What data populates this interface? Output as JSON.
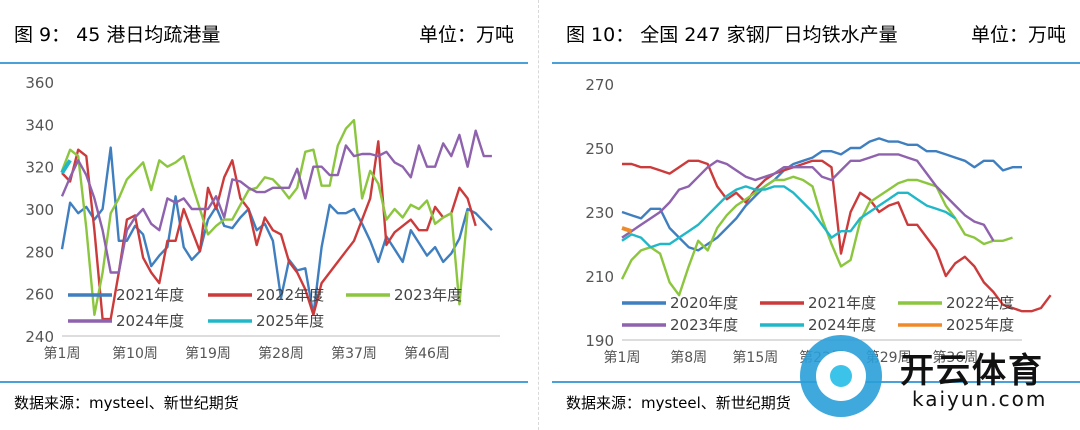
{
  "chart_data": [
    {
      "type": "line",
      "title": "图 9：  45 港日均疏港量",
      "unit": "单位：万吨",
      "source": "数据来源：mysteel、新世纪期货",
      "ylim": [
        240,
        360
      ],
      "yticks": [
        240,
        260,
        280,
        300,
        320,
        340,
        360
      ],
      "xticks": [
        {
          "label": "第1周",
          "week": 1
        },
        {
          "label": "第10周",
          "week": 10
        },
        {
          "label": "第19周",
          "week": 19
        },
        {
          "label": "第28周",
          "week": 28
        },
        {
          "label": "第37周",
          "week": 37
        },
        {
          "label": "第46周",
          "week": 46
        }
      ],
      "legend_rows": [
        [
          0,
          1,
          2
        ],
        [
          3,
          4
        ]
      ],
      "series": [
        {
          "name": "2021年度",
          "color": "#3f7fc0",
          "values": [
            281,
            303,
            298,
            301,
            295,
            300,
            329,
            285,
            285,
            292,
            288,
            273,
            278,
            282,
            306,
            282,
            276,
            280,
            295,
            301,
            292,
            291,
            296,
            300,
            290,
            293,
            285,
            258,
            276,
            271,
            272,
            250,
            282,
            302,
            298,
            298,
            300,
            293,
            285,
            275,
            287,
            281,
            275,
            290,
            284,
            278,
            282,
            275,
            279,
            286,
            300,
            298,
            294,
            290
          ]
        },
        {
          "name": "2022年度",
          "color": "#cc3b3b",
          "values": [
            317,
            313,
            328,
            325,
            290,
            248,
            248,
            270,
            295,
            297,
            277,
            270,
            265,
            285,
            285,
            300,
            290,
            280,
            310,
            300,
            315,
            323,
            305,
            300,
            283,
            296,
            290,
            288,
            275,
            270,
            262,
            250,
            265,
            270,
            275,
            280,
            285,
            295,
            305,
            332,
            283,
            289,
            292,
            295,
            290,
            290,
            301,
            296,
            298,
            310,
            305,
            292
          ]
        },
        {
          "name": "2023年度",
          "color": "#8cc63f",
          "values": [
            318,
            328,
            325,
            291,
            250,
            270,
            298,
            305,
            314,
            318,
            322,
            309,
            323,
            320,
            322,
            325,
            312,
            300,
            288,
            292,
            295,
            295,
            302,
            309,
            310,
            315,
            314,
            310,
            305,
            310,
            327,
            328,
            311,
            311,
            330,
            338,
            342,
            305,
            318,
            312,
            295,
            300,
            296,
            302,
            300,
            304,
            293,
            296,
            298,
            255,
            299
          ]
        },
        {
          "name": "2024年度",
          "color": "#8e62ad",
          "values": [
            306,
            315,
            323,
            316,
            305,
            290,
            270,
            270,
            290,
            296,
            300,
            293,
            290,
            305,
            303,
            305,
            300,
            300,
            300,
            306,
            296,
            314,
            313,
            310,
            308,
            308,
            310,
            310,
            310,
            319,
            305,
            320,
            320,
            316,
            316,
            330,
            325,
            326,
            326,
            325,
            327,
            322,
            320,
            315,
            330,
            320,
            320,
            331,
            325,
            335,
            320,
            337,
            325,
            325
          ]
        },
        {
          "name": "2025年度",
          "color": "#20b8c8",
          "values": [
            317,
            323
          ]
        }
      ]
    },
    {
      "type": "line",
      "title": "图 10：  全国 247 家钢厂日均铁水产量",
      "unit": "单位：万吨",
      "source": "数据来源：mysteel、新世纪期货",
      "ylim": [
        190,
        270
      ],
      "yticks": [
        190,
        210,
        230,
        250,
        270
      ],
      "xticks": [
        {
          "label": "第1周",
          "week": 1
        },
        {
          "label": "第8周",
          "week": 8
        },
        {
          "label": "第15周",
          "week": 15
        },
        {
          "label": "第22周",
          "week": 22
        },
        {
          "label": "第29周",
          "week": 29
        },
        {
          "label": "第36周",
          "week": 36
        }
      ],
      "legend_rows": [
        [
          0,
          1,
          2
        ],
        [
          3,
          4,
          5
        ]
      ],
      "series": [
        {
          "name": "2020年度",
          "color": "#3f7fc0",
          "values": [
            230,
            229,
            228,
            231,
            231,
            225,
            222,
            219,
            218,
            220,
            222,
            225,
            228,
            232,
            235,
            238,
            240,
            243,
            245,
            246,
            247,
            249,
            249,
            248,
            250,
            250,
            252,
            253,
            252,
            252,
            251,
            251,
            249,
            249,
            248,
            247,
            246,
            244,
            246,
            246,
            243,
            244,
            244
          ]
        },
        {
          "name": "2021年度",
          "color": "#cc3b3b",
          "values": [
            245,
            245,
            244,
            244,
            243,
            242,
            244,
            246,
            246,
            245,
            238,
            234,
            236,
            233,
            237,
            240,
            242,
            243,
            244,
            245,
            246,
            246,
            244,
            217,
            230,
            236,
            234,
            230,
            232,
            233,
            226,
            226,
            222,
            218,
            210,
            214,
            216,
            213,
            208,
            205,
            201,
            200,
            199,
            199,
            200,
            204
          ]
        },
        {
          "name": "2022年度",
          "color": "#8cc63f",
          "values": [
            209,
            215,
            218,
            219,
            217,
            208,
            204,
            213,
            221,
            218,
            225,
            229,
            232,
            234,
            236,
            238,
            240,
            240,
            241,
            240,
            238,
            228,
            220,
            213,
            215,
            227,
            233,
            235,
            237,
            239,
            240,
            240,
            239,
            238,
            232,
            228,
            223,
            222,
            220,
            221,
            221,
            222
          ]
        },
        {
          "name": "2023年度",
          "color": "#8e62ad",
          "values": [
            222,
            224,
            226,
            228,
            230,
            233,
            237,
            238,
            241,
            244,
            246,
            245,
            243,
            241,
            240,
            241,
            242,
            244,
            244,
            244,
            244,
            241,
            240,
            243,
            246,
            246,
            247,
            248,
            248,
            248,
            247,
            246,
            242,
            238,
            235,
            232,
            229,
            227,
            226,
            221
          ]
        },
        {
          "name": "2024年度",
          "color": "#20b8c8",
          "values": [
            221,
            223,
            222,
            219,
            220,
            220,
            222,
            224,
            226,
            229,
            232,
            235,
            237,
            238,
            237,
            237,
            238,
            238,
            236,
            233,
            230,
            226,
            222,
            224,
            224,
            228,
            230,
            232,
            234,
            236,
            236,
            234,
            232,
            231,
            230,
            228
          ]
        },
        {
          "name": "2025年度",
          "color": "#f08a28",
          "values": [
            225,
            224
          ]
        }
      ]
    }
  ],
  "watermark": {
    "text_cn": "开云体育",
    "text_en": "kaiyun.com"
  }
}
